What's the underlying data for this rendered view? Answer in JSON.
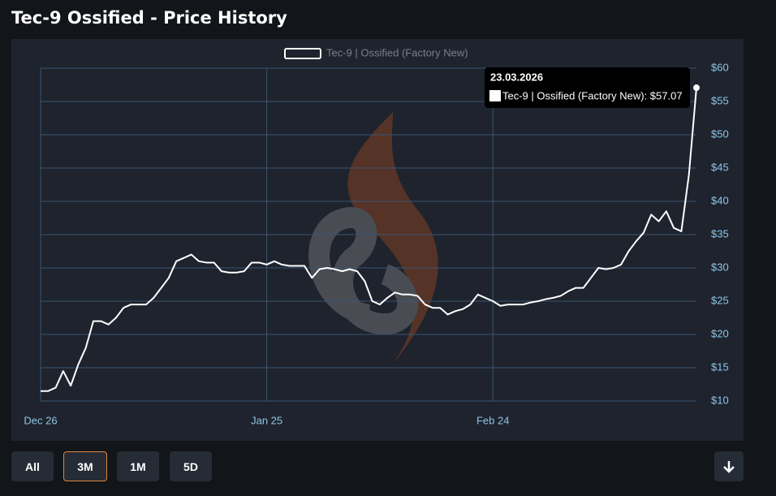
{
  "header": {
    "title": "Tec-9 Ossified - Price History"
  },
  "chart_data": {
    "type": "line",
    "categories": [
      "Dec 26",
      null,
      null,
      null,
      null,
      null,
      null,
      null,
      null,
      null,
      null,
      null,
      null,
      null,
      null,
      null,
      null,
      null,
      null,
      null,
      null,
      null,
      null,
      null,
      null,
      null,
      null,
      null,
      null,
      null,
      "Jan 25",
      null,
      null,
      null,
      null,
      null,
      null,
      null,
      null,
      null,
      null,
      null,
      null,
      null,
      null,
      null,
      null,
      null,
      null,
      null,
      null,
      null,
      null,
      null,
      null,
      null,
      null,
      null,
      null,
      null,
      "Feb 24",
      null,
      null,
      null,
      null,
      null,
      null,
      null,
      null,
      null,
      null,
      null,
      null,
      null,
      null,
      null,
      null,
      null,
      null,
      null,
      null,
      null,
      null,
      null,
      null,
      null,
      null,
      null
    ],
    "series": [
      {
        "name": "Tec-9 | Ossified (Factory New)",
        "color": "#ffffff",
        "values": [
          11.5,
          11.5,
          12,
          14.5,
          12.3,
          15.5,
          18,
          22,
          22,
          21.5,
          22.5,
          24,
          24.5,
          24.5,
          24.5,
          25.5,
          27,
          28.5,
          31,
          31.5,
          32,
          31,
          30.8,
          30.8,
          29.5,
          29.3,
          29.3,
          29.5,
          30.8,
          30.8,
          30.5,
          31,
          30.5,
          30.3,
          30.3,
          30.3,
          28.5,
          29.8,
          30,
          29.8,
          29.5,
          29.8,
          29.5,
          28,
          25,
          24.5,
          25.5,
          26.3,
          26,
          26,
          25.8,
          24.5,
          24,
          24,
          23,
          23.5,
          23.8,
          24.5,
          26,
          25.5,
          25,
          24.3,
          24.5,
          24.5,
          24.5,
          24.8,
          25,
          25.3,
          25.5,
          25.8,
          26.5,
          27,
          27,
          28.5,
          30,
          29.8,
          30,
          30.5,
          32.5,
          34,
          35.3,
          38,
          37,
          38.5,
          36,
          35.5,
          44,
          57.07
        ]
      }
    ],
    "ylim": [
      10,
      60
    ],
    "yticks": [
      {
        "value": 10,
        "label": "$10"
      },
      {
        "value": 15,
        "label": "$15"
      },
      {
        "value": 20,
        "label": "$20"
      },
      {
        "value": 25,
        "label": "$25"
      },
      {
        "value": 30,
        "label": "$30"
      },
      {
        "value": 35,
        "label": "$35"
      },
      {
        "value": 40,
        "label": "$40"
      },
      {
        "value": 45,
        "label": "$45"
      },
      {
        "value": 50,
        "label": "$50"
      },
      {
        "value": 55,
        "label": "$55"
      },
      {
        "value": 60,
        "label": "$60"
      }
    ],
    "grid": true,
    "legend": "top",
    "tooltip": {
      "title": "23.03.2026",
      "text": "Tec-9 | Ossified (Factory New): $57.07"
    }
  },
  "controls": {
    "ranges": [
      "All",
      "3M",
      "1M",
      "5D"
    ],
    "selected": "3M"
  }
}
